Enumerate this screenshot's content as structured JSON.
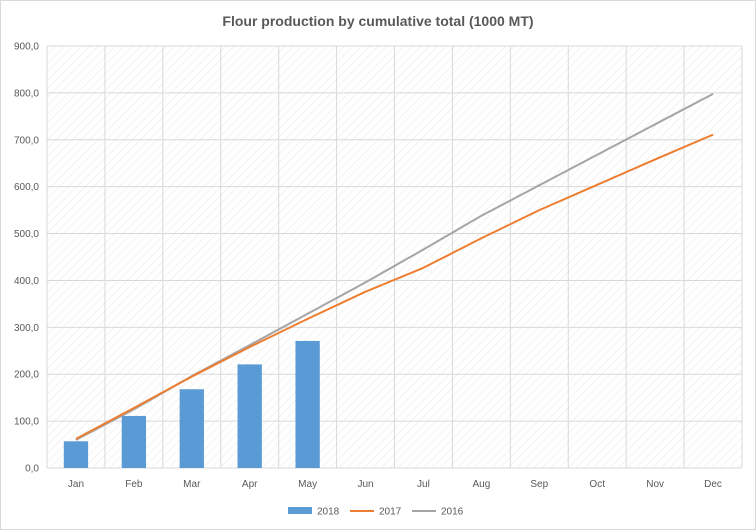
{
  "chart_data": {
    "type": "bar",
    "title": "Flour production by cumulative total (1000 MT)",
    "categories": [
      "Jan",
      "Feb",
      "Mar",
      "Apr",
      "May",
      "Jun",
      "Jul",
      "Aug",
      "Sep",
      "Oct",
      "Nov",
      "Dec"
    ],
    "ylim": [
      0,
      900
    ],
    "ytick_values": [
      0,
      100,
      200,
      300,
      400,
      500,
      600,
      700,
      800,
      900
    ],
    "ytick_labels": [
      "0,0",
      "100,0",
      "200,0",
      "300,0",
      "400,0",
      "500,0",
      "600,0",
      "700,0",
      "800,0",
      "900,0"
    ],
    "grid": true,
    "legend_position": "bottom",
    "series": [
      {
        "name": "2018",
        "kind": "bar",
        "color": "#5b9bd5",
        "values": [
          57,
          111,
          168,
          221,
          271,
          null,
          null,
          null,
          null,
          null,
          null,
          null
        ]
      },
      {
        "name": "2017",
        "kind": "line",
        "color": "#ed7d31",
        "values": [
          62,
          128,
          195,
          258,
          318,
          376,
          427,
          490,
          550,
          604,
          658,
          711
        ]
      },
      {
        "name": "2016",
        "kind": "line",
        "color": "#a5a5a5",
        "values": [
          60,
          125,
          196,
          262,
          329,
          396,
          466,
          538,
          603,
          668,
          733,
          798
        ]
      }
    ]
  }
}
